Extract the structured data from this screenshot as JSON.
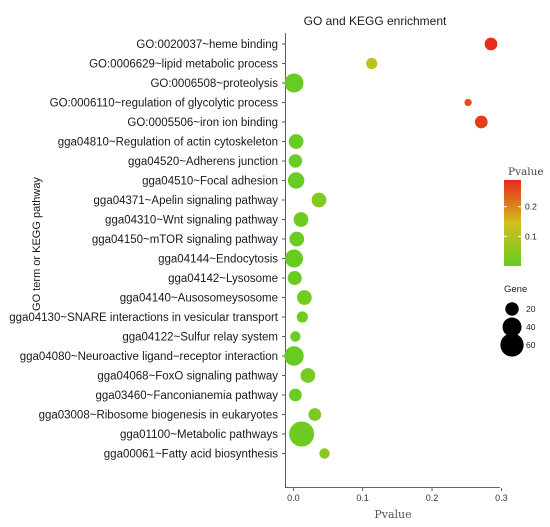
{
  "chart_data": {
    "type": "scatter",
    "title": "GO and KEGG enrichment",
    "xlabel": "Pvalue",
    "ylabel": "GO term or KEGG pathway",
    "xlim": [
      -0.012,
      0.298
    ],
    "xticks": [
      0.0,
      0.1,
      0.2,
      0.3
    ],
    "x_tick_labels": [
      "0.0",
      "0.1",
      "0.2",
      "0.3"
    ],
    "grid": false,
    "color_legend": {
      "title": "Pvalue",
      "ticks": [
        0.1,
        0.2
      ],
      "tick_labels": [
        "0.1",
        "0.2"
      ],
      "range": [
        0.0,
        0.29
      ],
      "low_color": "#66cc22",
      "high_color": "#e8281e",
      "placement": "right"
    },
    "size_legend": {
      "title": "Gene",
      "values": [
        20,
        40,
        60
      ],
      "labels": [
        "20",
        "40",
        "60"
      ],
      "placement": "right"
    },
    "categories": [
      "GO:0020037~heme binding",
      "GO:0006629~lipid metabolic process",
      "GO:0006508~proteolysis",
      "GO:0006110~regulation of glycolytic process",
      "GO:0005506~iron ion binding",
      "gga04810~Regulation of actin cytoskeleton",
      "gga04520~Adherens junction",
      "gga04510~Focal adhesion",
      "gga04371~Apelin signaling pathway",
      "gga04310~Wnt signaling pathway",
      "gga04150~mTOR signaling pathway",
      "gga04144~Endocytosis",
      "gga04142~Lysosome",
      "gga04140~Ausosomeysosome",
      "gga04130~SNARE interactions in vesicular transport",
      "gga04122~Sulfur relay system",
      "gga04080~Neuroactive ligand−receptor interaction",
      "gga04068~FoxO signaling pathway",
      "gga03460~Fanconianemia pathway",
      "gga03008~Ribosome biogenesis in eukaryotes",
      "gga01100~Metabolic pathways",
      "gga00061~Fatty acid biosynthesis"
    ],
    "points": [
      {
        "term": "GO:0020037~heme binding",
        "pvalue": 0.285,
        "gene": 18
      },
      {
        "term": "GO:0006629~lipid metabolic process",
        "pvalue": 0.113,
        "gene": 14
      },
      {
        "term": "GO:0006508~proteolysis",
        "pvalue": 0.001,
        "gene": 40
      },
      {
        "term": "GO:0006110~regulation of glycolytic process",
        "pvalue": 0.252,
        "gene": 6
      },
      {
        "term": "GO:0005506~iron ion binding",
        "pvalue": 0.271,
        "gene": 18
      },
      {
        "term": "gga04810~Regulation of actin cytoskeleton",
        "pvalue": 0.004,
        "gene": 24
      },
      {
        "term": "gga04520~Adherens junction",
        "pvalue": 0.003,
        "gene": 20
      },
      {
        "term": "gga04510~Focal adhesion",
        "pvalue": 0.004,
        "gene": 30
      },
      {
        "term": "gga04371~Apelin signaling pathway",
        "pvalue": 0.037,
        "gene": 24
      },
      {
        "term": "gga04310~Wnt signaling pathway",
        "pvalue": 0.011,
        "gene": 24
      },
      {
        "term": "gga04150~mTOR signaling pathway",
        "pvalue": 0.005,
        "gene": 24
      },
      {
        "term": "gga04144~Endocytosis",
        "pvalue": 0.001,
        "gene": 36
      },
      {
        "term": "gga04142~Lysosome",
        "pvalue": 0.002,
        "gene": 22
      },
      {
        "term": "gga04140~Ausosomeysosome",
        "pvalue": 0.016,
        "gene": 24
      },
      {
        "term": "gga04130~SNARE interactions in vesicular transport",
        "pvalue": 0.013,
        "gene": 14
      },
      {
        "term": "gga04122~Sulfur relay system",
        "pvalue": 0.003,
        "gene": 12
      },
      {
        "term": "gga04080~Neuroactive ligand−receptor interaction",
        "pvalue": 0.001,
        "gene": 42
      },
      {
        "term": "gga04068~FoxO signaling pathway",
        "pvalue": 0.021,
        "gene": 24
      },
      {
        "term": "gga03460~Fanconianemia pathway",
        "pvalue": 0.003,
        "gene": 18
      },
      {
        "term": "gga03008~Ribosome biogenesis in eukaryotes",
        "pvalue": 0.031,
        "gene": 18
      },
      {
        "term": "gga01100~Metabolic pathways",
        "pvalue": 0.012,
        "gene": 70
      },
      {
        "term": "gga00061~Fatty acid biosynthesis",
        "pvalue": 0.045,
        "gene": 12
      }
    ]
  }
}
